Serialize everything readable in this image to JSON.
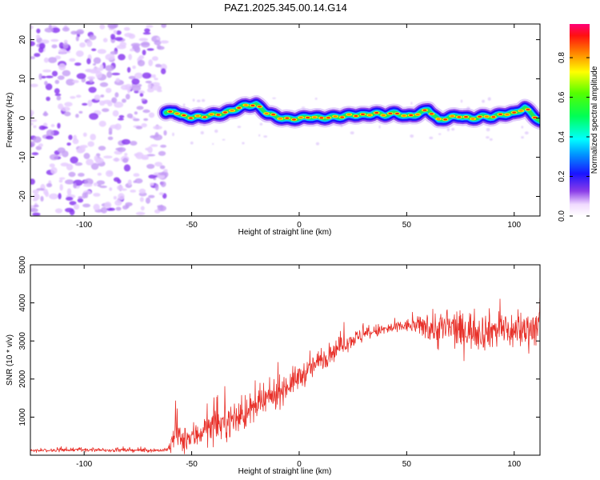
{
  "figure_title": "PAZ1.2025.345.00.14.G14",
  "chart_data": [
    {
      "type": "heatmap",
      "title": "PAZ1.2025.345.00.14.G14",
      "xlabel": "Height of straight line (km)",
      "ylabel": "Frequency (Hz)",
      "xlim": [
        -125,
        112
      ],
      "ylim": [
        -25,
        24
      ],
      "xticks": [
        -100,
        -50,
        0,
        50,
        100
      ],
      "xtick_labels": [
        "-100",
        "-50",
        "0",
        "50",
        "100"
      ],
      "yticks": [
        -20,
        -10,
        0,
        10,
        20
      ],
      "ytick_labels": [
        "-20",
        "-10",
        "0",
        "10",
        "20"
      ],
      "noise_region_km": [
        -125,
        -62
      ],
      "signal_region_km": [
        -62,
        112
      ],
      "ridge": {
        "x": [
          -62,
          -58,
          -55,
          -50,
          -45,
          -40,
          -35,
          -30,
          -25,
          -20,
          -15,
          -10,
          -5,
          0,
          5,
          10,
          15,
          20,
          25,
          30,
          35,
          40,
          45,
          50,
          55,
          60,
          65,
          70,
          75,
          80,
          85,
          90,
          95,
          100,
          105,
          112
        ],
        "y": [
          1.2,
          1.8,
          0.6,
          0.2,
          0.4,
          0.8,
          1.2,
          2.2,
          3.2,
          3.4,
          1.3,
          0.2,
          -0.3,
          -0.1,
          0.3,
          0.0,
          0.2,
          0.4,
          0.8,
          0.7,
          1.2,
          0.8,
          1.3,
          0.4,
          1.0,
          2.2,
          -0.6,
          0.2,
          0.5,
          -0.2,
          0.4,
          0.3,
          1.0,
          1.2,
          2.6,
          -0.8
        ]
      },
      "colorbar": {
        "label": "Normalized spectral amplitude",
        "range": [
          0.0,
          0.97
        ],
        "ticks": [
          0.0,
          0.2,
          0.4,
          0.6,
          0.8
        ],
        "tick_labels": [
          "0.0",
          "0.2",
          "0.4",
          "0.6",
          "0.8"
        ]
      }
    },
    {
      "type": "line",
      "xlabel": "Height of straight line (km)",
      "ylabel": "SNR (10 * v/v)",
      "xlim": [
        -125,
        112
      ],
      "ylim": [
        0,
        5000
      ],
      "xticks": [
        -100,
        -50,
        0,
        50,
        100
      ],
      "xtick_labels": [
        "-100",
        "-50",
        "0",
        "50",
        "100"
      ],
      "yticks": [
        1000,
        2000,
        3000,
        4000,
        5000
      ],
      "ytick_labels": [
        "1000",
        "2000",
        "3000",
        "4000",
        "5000"
      ],
      "series": [
        {
          "name": "SNR",
          "color": "#e8312a",
          "x": [
            -125,
            -100,
            -80,
            -62,
            -60,
            -57,
            -55,
            -50,
            -45,
            -40,
            -35,
            -30,
            -25,
            -20,
            -15,
            -10,
            -5,
            0,
            5,
            10,
            15,
            20,
            25,
            30,
            35,
            40,
            45,
            50,
            55,
            60,
            65,
            70,
            75,
            80,
            85,
            90,
            95,
            100,
            105,
            112
          ],
          "mean": [
            130,
            140,
            130,
            130,
            200,
            700,
            350,
            450,
            650,
            750,
            850,
            950,
            1100,
            1250,
            1450,
            1650,
            1850,
            2050,
            2250,
            2500,
            2700,
            2900,
            3050,
            3150,
            3250,
            3300,
            3350,
            3400,
            3400,
            3380,
            3300,
            3350,
            3250,
            3300,
            3250,
            3300,
            3300,
            3250,
            3300,
            3400
          ],
          "spread": [
            40,
            45,
            45,
            45,
            150,
            500,
            300,
            350,
            350,
            380,
            380,
            380,
            400,
            380,
            380,
            350,
            330,
            300,
            280,
            270,
            250,
            220,
            200,
            180,
            160,
            150,
            150,
            150,
            200,
            350,
            500,
            450,
            450,
            450,
            450,
            450,
            450,
            450,
            450,
            450
          ]
        }
      ]
    }
  ],
  "colors": {
    "signal_line": "#e8312a",
    "noise_speckle": "#8c3cf0"
  }
}
